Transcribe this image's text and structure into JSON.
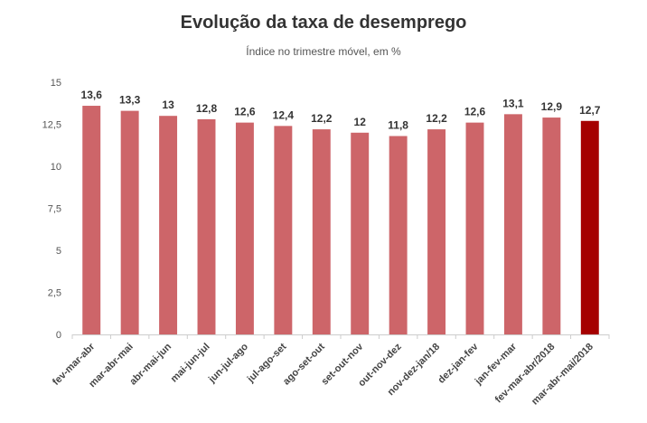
{
  "chart_data": {
    "type": "bar",
    "title": "Evolução da taxa de desemprego",
    "subtitle": "Índice no trimestre móvel, em %",
    "xlabel": "",
    "ylabel": "",
    "ylim": [
      0,
      15
    ],
    "yticks": [
      0,
      2.5,
      5,
      7.5,
      10,
      12.5,
      15
    ],
    "ytick_labels": [
      "0",
      "2,5",
      "5",
      "7,5",
      "10",
      "12,5",
      "15"
    ],
    "categories": [
      "fev-mar-abr",
      "mar-abr-mai",
      "abr-mai-jun",
      "mai-jun-jul",
      "jun-jul-ago",
      "jul-ago-set",
      "ago-set-out",
      "set-out-nov",
      "out-nov-dez",
      "nov-dez-jan/18",
      "dez-jan-fev",
      "jan-fev-mar",
      "fev-mar-abr/2018",
      "mar-abr-mai/2018"
    ],
    "values": [
      13.6,
      13.3,
      13,
      12.8,
      12.6,
      12.4,
      12.2,
      12,
      11.8,
      12.2,
      12.6,
      13.1,
      12.9,
      12.7
    ],
    "value_labels": [
      "13,6",
      "13,3",
      "13",
      "12,8",
      "12,6",
      "12,4",
      "12,2",
      "12",
      "11,8",
      "12,2",
      "12,6",
      "13,1",
      "12,9",
      "12,7"
    ],
    "grid": false,
    "legend": "none",
    "colors": {
      "bar": "#cd6569",
      "highlight": "#a50000",
      "axis": "#cccccc"
    },
    "highlight_index": 13
  }
}
